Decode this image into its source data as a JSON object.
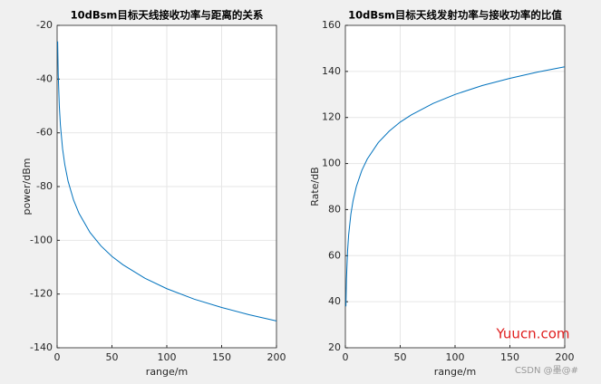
{
  "chart_data": [
    {
      "type": "line",
      "title": "10dBsm目标天线接收功率与距离的关系",
      "xlabel": "range/m",
      "ylabel": "power/dBm",
      "x": [
        0.5,
        1,
        2,
        3,
        5,
        7,
        10,
        15,
        20,
        30,
        40,
        50,
        60,
        80,
        100,
        125,
        150,
        175,
        200
      ],
      "series": [
        {
          "color": "#0072bd",
          "values": [
            -26.0,
            -38.0,
            -50.0,
            -57.1,
            -66.0,
            -71.8,
            -78.0,
            -85.0,
            -90.0,
            -97.1,
            -102.1,
            -106.0,
            -109.1,
            -114.1,
            -118.0,
            -121.9,
            -125.0,
            -127.7,
            -130.0
          ]
        }
      ],
      "xlim": [
        0,
        200
      ],
      "xticks": [
        0,
        50,
        100,
        150,
        200
      ],
      "ylim": [
        -140,
        -20
      ],
      "yticks": [
        -140,
        -120,
        -100,
        -80,
        -60,
        -40,
        -20
      ],
      "grid": true
    },
    {
      "type": "line",
      "title": "10dBsm目标天线发射功率与接收功率的比值",
      "xlabel": "range/m",
      "ylabel": "Rate/dB",
      "x": [
        0.5,
        1,
        2,
        3,
        5,
        7,
        10,
        15,
        20,
        30,
        40,
        50,
        60,
        80,
        100,
        125,
        150,
        175,
        200
      ],
      "series": [
        {
          "color": "#0072bd",
          "values": [
            38.0,
            50.0,
            62.0,
            69.1,
            78.0,
            83.8,
            90.0,
            97.0,
            102.0,
            109.1,
            114.1,
            118.0,
            121.1,
            126.1,
            130.0,
            133.9,
            137.0,
            139.7,
            142.0
          ]
        }
      ],
      "xlim": [
        0,
        200
      ],
      "xticks": [
        0,
        50,
        100,
        150,
        200
      ],
      "ylim": [
        20,
        160
      ],
      "yticks": [
        20,
        40,
        60,
        80,
        100,
        120,
        140,
        160
      ],
      "grid": true
    }
  ],
  "watermarks": {
    "site": "Yuucn.com",
    "csdn": "CSDN @墨@#"
  }
}
